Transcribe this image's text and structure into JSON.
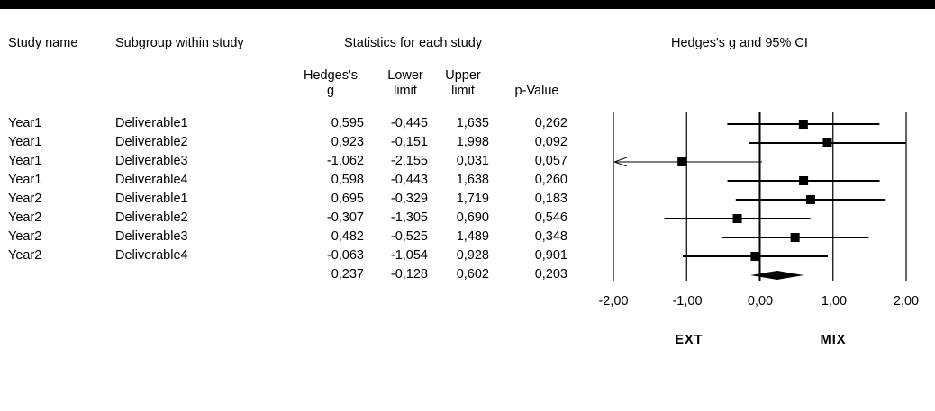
{
  "headers": {
    "study_name": "Study name",
    "subgroup": "Subgroup within study",
    "statistics": "Statistics for each study",
    "plot_title": "Hedges's g and 95% CI",
    "g_line1": "Hedges's",
    "g_line2": "g",
    "lower_line1": "Lower",
    "lower_line2": "limit",
    "upper_line1": "Upper",
    "upper_line2": "limit",
    "pvalue": "p-Value"
  },
  "rows": [
    {
      "study": "Year1",
      "subgroup": "Deliverable1",
      "g": "0,595",
      "lower": "-0,445",
      "upper": "1,635",
      "p": "0,262"
    },
    {
      "study": "Year1",
      "subgroup": "Deliverable2",
      "g": "0,923",
      "lower": "-0,151",
      "upper": "1,998",
      "p": "0,092"
    },
    {
      "study": "Year1",
      "subgroup": "Deliverable3",
      "g": "-1,062",
      "lower": "-2,155",
      "upper": "0,031",
      "p": "0,057"
    },
    {
      "study": "Year1",
      "subgroup": "Deliverable4",
      "g": "0,598",
      "lower": "-0,443",
      "upper": "1,638",
      "p": "0,260"
    },
    {
      "study": "Year2",
      "subgroup": "Deliverable1",
      "g": "0,695",
      "lower": "-0,329",
      "upper": "1,719",
      "p": "0,183"
    },
    {
      "study": "Year2",
      "subgroup": "Deliverable2",
      "g": "-0,307",
      "lower": "-1,305",
      "upper": "0,690",
      "p": "0,546"
    },
    {
      "study": "Year2",
      "subgroup": "Deliverable3",
      "g": "0,482",
      "lower": "-0,525",
      "upper": "1,489",
      "p": "0,348"
    },
    {
      "study": "Year2",
      "subgroup": "Deliverable4",
      "g": "-0,063",
      "lower": "-1,054",
      "upper": "0,928",
      "p": "0,901"
    }
  ],
  "summary": {
    "g": "0,237",
    "lower": "-0,128",
    "upper": "0,602",
    "p": "0,203"
  },
  "footer": {
    "left_label": "EXT",
    "right_label": "MIX"
  },
  "chart_data": {
    "type": "forest",
    "title": "Hedges's g and 95% CI",
    "xlim": [
      -2,
      2
    ],
    "ticks": [
      -2,
      -1,
      0,
      1,
      2
    ],
    "tick_labels": [
      "-2,00",
      "-1,00",
      "0,00",
      "1,00",
      "2,00"
    ],
    "studies": [
      {
        "g": 0.595,
        "lower": -0.445,
        "upper": 1.635
      },
      {
        "g": 0.923,
        "lower": -0.151,
        "upper": 1.998
      },
      {
        "g": -1.062,
        "lower": -2.155,
        "upper": 0.031
      },
      {
        "g": 0.598,
        "lower": -0.443,
        "upper": 1.638
      },
      {
        "g": 0.695,
        "lower": -0.329,
        "upper": 1.719
      },
      {
        "g": -0.307,
        "lower": -1.305,
        "upper": 0.69
      },
      {
        "g": 0.482,
        "lower": -0.525,
        "upper": 1.489
      },
      {
        "g": -0.063,
        "lower": -1.054,
        "upper": 0.928
      }
    ],
    "summary": {
      "g": 0.237,
      "lower": -0.128,
      "upper": 0.602
    },
    "grid": false
  }
}
